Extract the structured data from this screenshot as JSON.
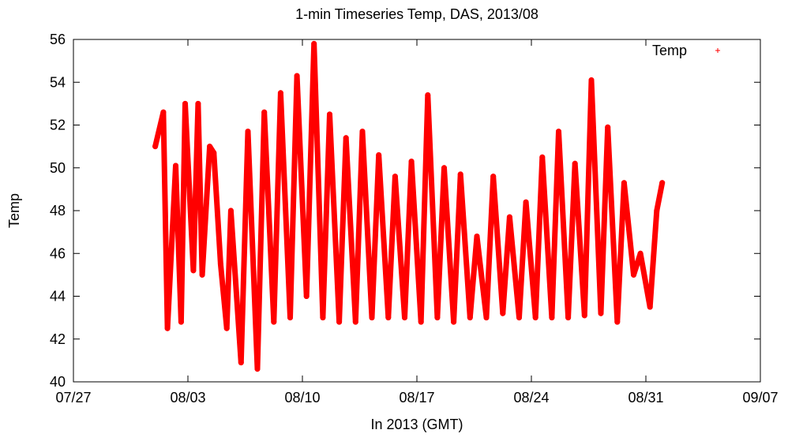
{
  "chart_data": {
    "type": "line",
    "title": "1-min Timeseries Temp, DAS, 2013/08",
    "xlabel": "In 2013 (GMT)",
    "ylabel": "Temp",
    "xlim": [
      "2013-07-27",
      "2013-09-07"
    ],
    "ylim": [
      40,
      56
    ],
    "x_ticks": [
      "07/27",
      "08/03",
      "08/10",
      "08/17",
      "08/24",
      "08/31",
      "09/07"
    ],
    "y_ticks": [
      40,
      42,
      44,
      46,
      48,
      50,
      52,
      54,
      56
    ],
    "legend": {
      "position": "top-right",
      "marker": "+"
    },
    "grid": false,
    "series": [
      {
        "name": "Temp",
        "color": "#ff0000",
        "marker": "+",
        "x": [
          "2013-08-01 00:00",
          "2013-08-01 12:00",
          "2013-08-01 18:00",
          "2013-08-02 06:00",
          "2013-08-02 14:00",
          "2013-08-02 20:00",
          "2013-08-03 08:00",
          "2013-08-03 15:00",
          "2013-08-03 21:00",
          "2013-08-04 08:00",
          "2013-08-04 14:00",
          "2013-08-05 00:00",
          "2013-08-05 09:00",
          "2013-08-05 15:00",
          "2013-08-06 06:00",
          "2013-08-06 16:00",
          "2013-08-07 06:00",
          "2013-08-07 16:00",
          "2013-08-08 06:00",
          "2013-08-08 16:00",
          "2013-08-09 06:00",
          "2013-08-09 16:00",
          "2013-08-10 06:00",
          "2013-08-10 17:00",
          "2013-08-11 06:00",
          "2013-08-11 16:00",
          "2013-08-12 06:00",
          "2013-08-12 16:00",
          "2013-08-13 06:00",
          "2013-08-13 16:00",
          "2013-08-14 06:00",
          "2013-08-14 16:00",
          "2013-08-15 06:00",
          "2013-08-15 16:00",
          "2013-08-16 06:00",
          "2013-08-16 16:00",
          "2013-08-17 06:00",
          "2013-08-17 16:00",
          "2013-08-18 06:00",
          "2013-08-18 16:00",
          "2013-08-19 06:00",
          "2013-08-19 16:00",
          "2013-08-20 06:00",
          "2013-08-20 16:00",
          "2013-08-21 06:00",
          "2013-08-21 16:00",
          "2013-08-22 06:00",
          "2013-08-22 16:00",
          "2013-08-23 06:00",
          "2013-08-23 16:00",
          "2013-08-24 06:00",
          "2013-08-24 16:00",
          "2013-08-25 06:00",
          "2013-08-25 16:00",
          "2013-08-26 06:00",
          "2013-08-26 16:00",
          "2013-08-27 06:00",
          "2013-08-27 16:00",
          "2013-08-28 06:00",
          "2013-08-28 16:00",
          "2013-08-29 06:00",
          "2013-08-29 16:00",
          "2013-08-30 06:00",
          "2013-08-30 16:00",
          "2013-08-31 06:00",
          "2013-08-31 16:00",
          "2013-09-01 00:00"
        ],
        "values": [
          51.0,
          52.6,
          42.5,
          50.1,
          42.8,
          53.0,
          45.2,
          53.0,
          45.0,
          51.0,
          50.7,
          45.5,
          42.5,
          48.0,
          40.9,
          51.7,
          40.6,
          52.6,
          42.8,
          53.5,
          43.0,
          54.3,
          44.0,
          55.8,
          43.0,
          52.5,
          42.8,
          51.4,
          42.8,
          51.7,
          43.0,
          50.6,
          43.0,
          49.6,
          43.0,
          50.3,
          42.8,
          53.4,
          43.0,
          50.0,
          42.8,
          49.7,
          43.0,
          46.8,
          43.0,
          49.6,
          43.2,
          47.7,
          43.0,
          48.4,
          43.0,
          50.5,
          43.0,
          51.7,
          43.0,
          50.2,
          43.1,
          54.1,
          43.2,
          51.9,
          42.8,
          49.3,
          45.0,
          46.0,
          43.5,
          48.0,
          49.3
        ]
      }
    ]
  }
}
